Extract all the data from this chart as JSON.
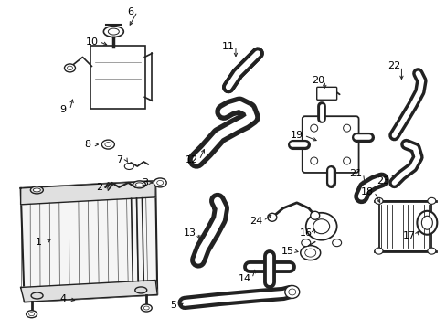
{
  "background_color": "#ffffff",
  "line_color": "#222222",
  "fig_width": 4.89,
  "fig_height": 3.6,
  "dpi": 100
}
